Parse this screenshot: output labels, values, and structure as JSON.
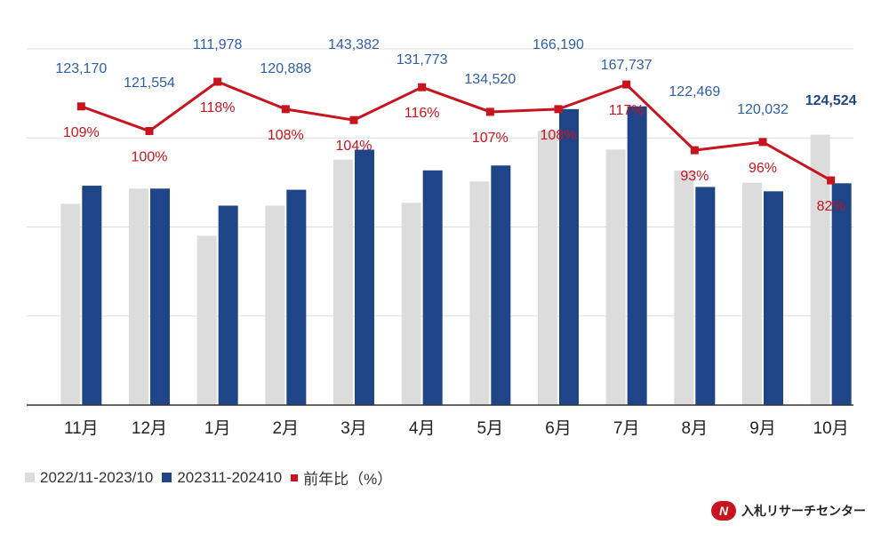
{
  "colors": {
    "prev": "#dcdcdc",
    "curr": "#1f4488",
    "ratio": "#c8141e",
    "label": "#2e5ea6",
    "grid": "#dedede",
    "axis": "#333333"
  },
  "legend": {
    "prev": "2022/11-2023/10",
    "curr": "202311-202410",
    "ratio": "前年比（%）"
  },
  "logo": {
    "mark": "N",
    "text": "入札リサーチセンター"
  },
  "chart_data": {
    "type": "bar+line",
    "categories": [
      "11月",
      "12月",
      "1月",
      "2月",
      "3月",
      "4月",
      "5月",
      "6月",
      "7月",
      "8月",
      "9月",
      "10月"
    ],
    "series": [
      {
        "name": "2022/11-2023/10",
        "type": "bar",
        "values": [
          113000,
          121554,
          95000,
          112000,
          137800,
          113600,
          125600,
          154000,
          143500,
          131700,
          124800,
          151800
        ]
      },
      {
        "name": "202311-202410",
        "type": "bar",
        "values": [
          123170,
          121554,
          111978,
          120888,
          143382,
          131773,
          134520,
          166190,
          167737,
          122469,
          120032,
          124524
        ]
      }
    ],
    "ratio_series": {
      "name": "前年比（%）",
      "type": "line",
      "values": [
        109,
        100,
        118,
        108,
        104,
        116,
        107,
        108,
        117,
        93,
        96,
        82
      ]
    },
    "value_labels": [
      "123,170",
      "121,554",
      "111,978",
      "120,888",
      "143,382",
      "131,773",
      "134,520",
      "166,190",
      "167,737",
      "122,469",
      "120,032",
      "124,524"
    ],
    "ratio_labels": [
      "109%",
      "100%",
      "118%",
      "108%",
      "104%",
      "116%",
      "107%",
      "108%",
      "117%",
      "93%",
      "96%",
      "82%"
    ],
    "bar_axis": {
      "min": 0,
      "max": 200000,
      "gridlines": [
        50000,
        100000,
        150000,
        200000
      ]
    },
    "ratio_axis": {
      "min": 0,
      "max": 130
    },
    "grid": true,
    "legend_position": "bottom-left"
  }
}
